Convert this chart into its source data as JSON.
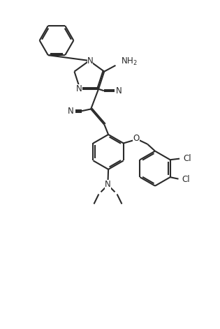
{
  "background_color": "#ffffff",
  "line_color": "#2a2a2a",
  "line_width": 1.5,
  "font_size": 8.5,
  "figsize": [
    3.15,
    4.72
  ],
  "dpi": 100,
  "xlim": [
    0,
    10
  ],
  "ylim": [
    0,
    15
  ]
}
